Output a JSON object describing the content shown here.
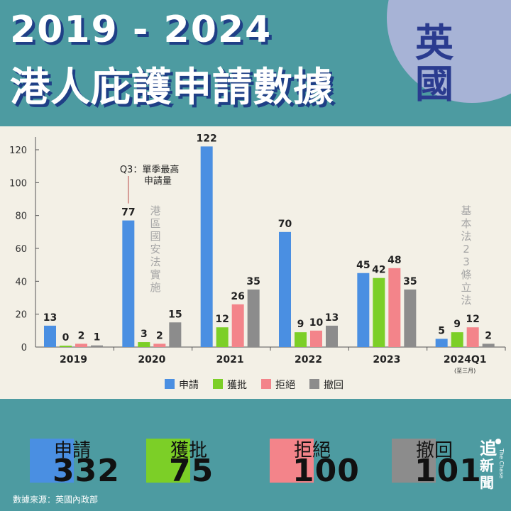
{
  "header": {
    "title_year": "2019 - 2024",
    "title_main": "港人庇護申請數據",
    "country": "英國"
  },
  "colors": {
    "apply": "#4a8fe2",
    "approve": "#7ccf27",
    "reject": "#f3848a",
    "withdraw": "#8c8c8c",
    "axis": "#555555",
    "annotation_line": "#c1605e"
  },
  "chart_data": {
    "type": "bar",
    "categories": [
      "2019",
      "2020",
      "2021",
      "2022",
      "2023",
      "2024Q1"
    ],
    "category_notes": [
      "",
      "",
      "",
      "",
      "",
      "(至三月)"
    ],
    "series": [
      {
        "name": "申請",
        "key": "apply",
        "values": [
          13,
          77,
          122,
          70,
          45,
          5
        ]
      },
      {
        "name": "獲批",
        "key": "approve",
        "values": [
          0,
          3,
          12,
          9,
          42,
          9
        ]
      },
      {
        "name": "拒絕",
        "key": "reject",
        "values": [
          2,
          2,
          26,
          10,
          48,
          12
        ]
      },
      {
        "name": "撤回",
        "key": "withdraw",
        "values": [
          1,
          15,
          35,
          13,
          35,
          2
        ]
      }
    ],
    "ylim": [
      0,
      130
    ],
    "yticks": [
      0,
      20,
      40,
      60,
      80,
      100,
      120
    ],
    "annotations": [
      {
        "text_line1": "Q3：單季最高",
        "text_line2": "申請量"
      },
      {
        "text": "港區國安法實施"
      },
      {
        "text": "基本法23條立法"
      }
    ],
    "legend_position": "bottom-center"
  },
  "totals": [
    {
      "name": "申請",
      "value": "332",
      "key": "apply"
    },
    {
      "name": "獲批",
      "value": "75",
      "key": "approve"
    },
    {
      "name": "拒絕",
      "value": "100",
      "key": "reject"
    },
    {
      "name": "撤回",
      "value": "101",
      "key": "withdraw"
    }
  ],
  "source": "數據來源：英國內政部",
  "logo": {
    "line1": "追",
    "line2": "新聞",
    "vertical": "The Chase"
  }
}
